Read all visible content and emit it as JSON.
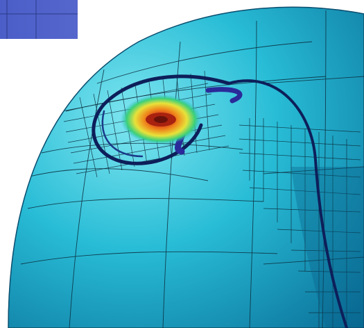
{
  "scene": {
    "description_icon": "amr-sphere-vortex-render",
    "colors": {
      "background": "#ffffff",
      "legend_blue": "#4a5ec8",
      "legend_grid": "#2a3a88",
      "sphere_light": "#5fd6e8",
      "sphere_mid": "#20b5d0",
      "sphere_dark": "#0a7fa8",
      "filament": "#0d1f5a",
      "vortex_yellow": "#e8e23a",
      "vortex_orange": "#ef8a1c",
      "vortex_red": "#d8321a",
      "vortex_core": "#7a1a10",
      "grid_line": "#0b2a3a"
    }
  }
}
